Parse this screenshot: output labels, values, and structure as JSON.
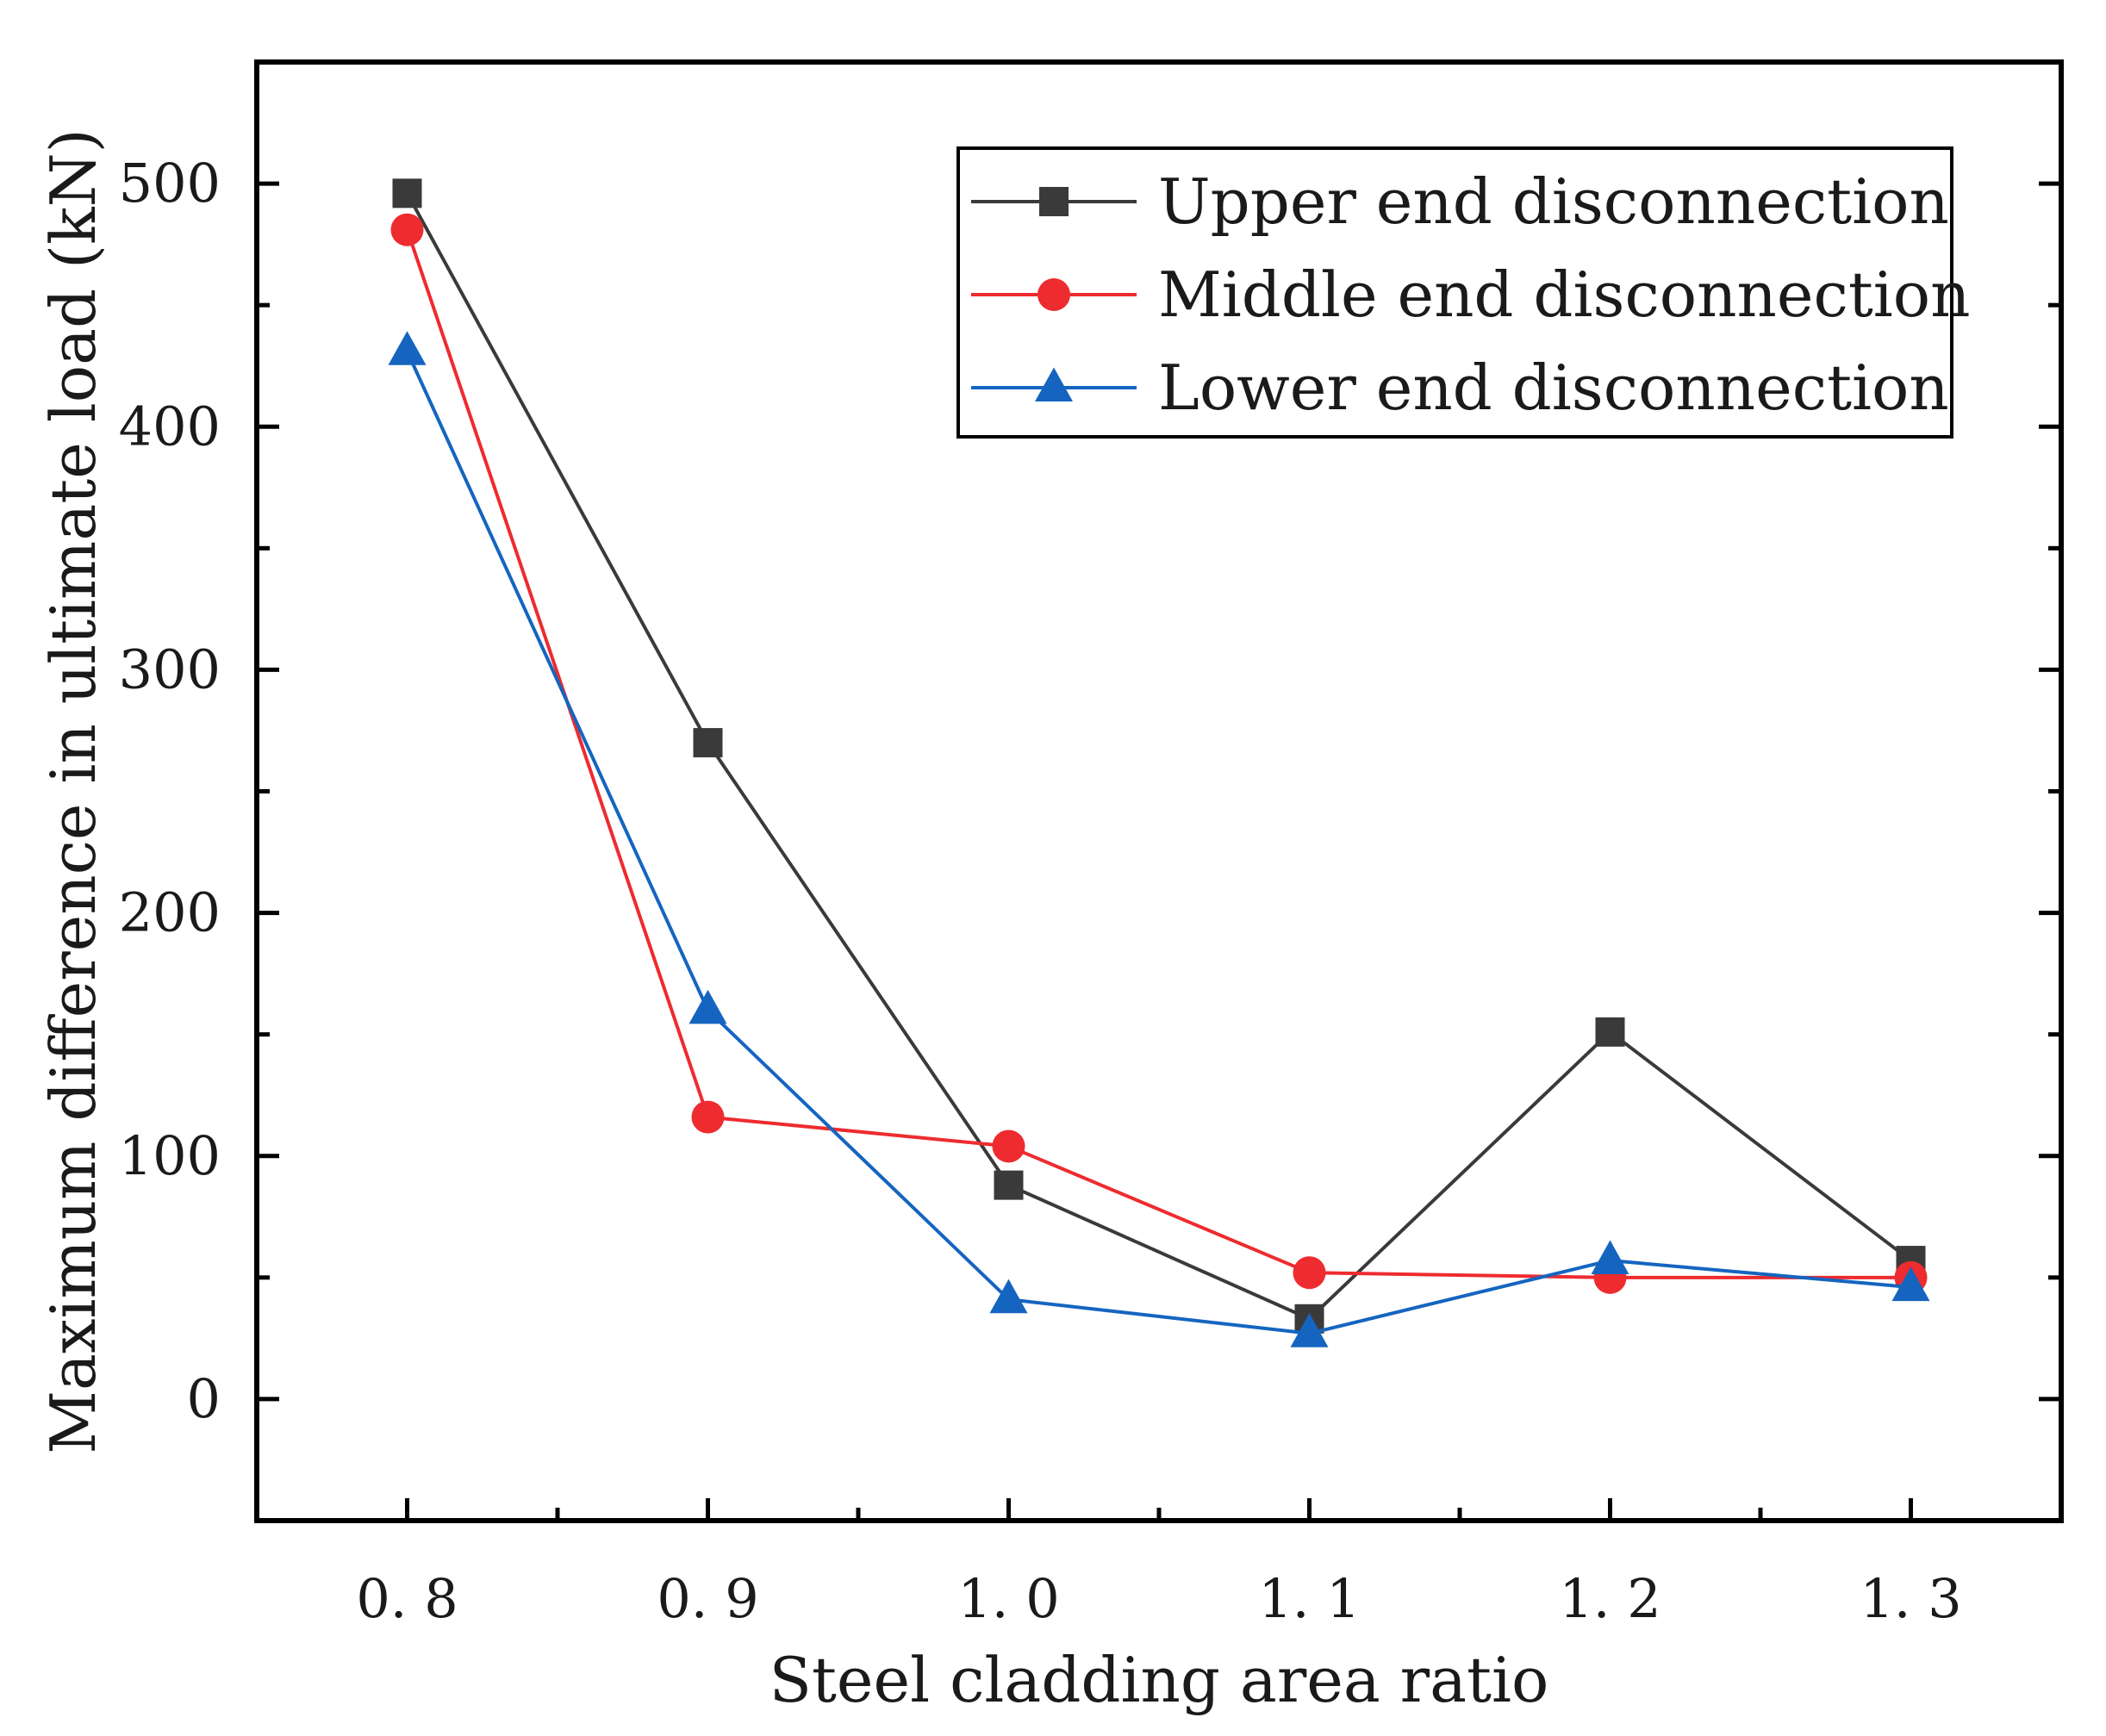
{
  "chart_data": {
    "type": "line",
    "title": "",
    "xlabel": "Steel cladding area ratio",
    "ylabel": "Maximum difference in ultimate load (kN)",
    "x": [
      0.8,
      0.9,
      1.0,
      1.1,
      1.2,
      1.3
    ],
    "x_tick_labels": [
      "0. 8",
      "0. 9",
      "1. 0",
      "1. 1",
      "1. 2",
      "1. 3"
    ],
    "xlim": [
      0.75,
      1.35
    ],
    "ylim": [
      -50,
      550
    ],
    "y_ticks": [
      0,
      100,
      200,
      300,
      400,
      500
    ],
    "y_tick_labels": [
      "0",
      "100",
      "200",
      "300",
      "400",
      "500"
    ],
    "grid": false,
    "legend_position": "top-right",
    "series": [
      {
        "name": "Upper end disconnection",
        "color": "#3a3a3a",
        "marker": "square",
        "values": [
          496,
          270,
          88,
          33,
          151,
          57
        ]
      },
      {
        "name": "Middle end disconnection",
        "color": "#ee2b2f",
        "marker": "circle",
        "values": [
          481,
          116,
          104,
          52,
          50,
          50
        ]
      },
      {
        "name": "Lower end disconnection",
        "color": "#1565c0",
        "marker": "triangle",
        "values": [
          431,
          160,
          41,
          27,
          57,
          46
        ]
      }
    ]
  }
}
